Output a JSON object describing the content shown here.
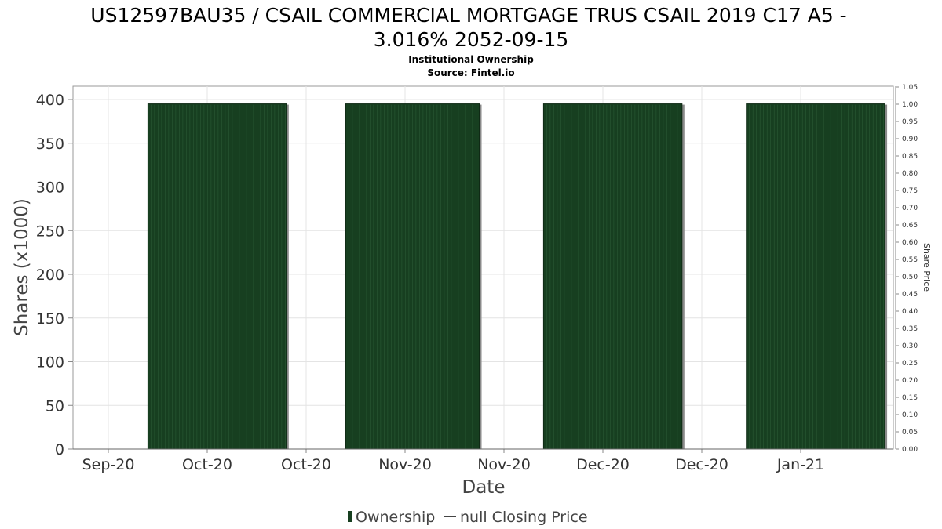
{
  "title_line1": "US12597BAU35 / CSAIL COMMERCIAL MORTGAGE TRUS CSAIL 2019 C17 A5 -",
  "title_line2": "3.016% 2052-09-15",
  "subtitle_line1": "Institutional Ownership",
  "subtitle_line2": "Source: Fintel.io",
  "colors": {
    "bar_fill": "#173f20",
    "bar_stripe": "#2b5a35",
    "bar_shadow": "#8a8a8a",
    "grid": "#e4e4e4",
    "axis": "#888888"
  },
  "legend": {
    "ownership": "Ownership",
    "price": "null Closing Price"
  },
  "chart_data": {
    "type": "bar",
    "title": "US12597BAU35 / CSAIL COMMERCIAL MORTGAGE TRUS CSAIL 2019 C17 A5 - 3.016% 2052-09-15",
    "xlabel": "Date",
    "ylabel": "Shares (x1000)",
    "y2label": "Share Price",
    "x_tick_labels": [
      "Sep-20",
      "Oct-20",
      "Oct-20",
      "Nov-20",
      "Nov-20",
      "Dec-20",
      "Dec-20",
      "Jan-21"
    ],
    "y_ticks": [
      0,
      50,
      100,
      150,
      200,
      250,
      300,
      350,
      400
    ],
    "y2_ticks": [
      "0.00",
      "0.05",
      "0.10",
      "0.15",
      "0.20",
      "0.25",
      "0.30",
      "0.35",
      "0.40",
      "0.45",
      "0.50",
      "0.55",
      "0.60",
      "0.65",
      "0.70",
      "0.75",
      "0.80",
      "0.85",
      "0.90",
      "0.95",
      "1.00",
      "1.05"
    ],
    "ylim": [
      0,
      400
    ],
    "y2lim": [
      0,
      1.05
    ],
    "grid": true,
    "legend_position": "bottom",
    "series": [
      {
        "name": "Ownership",
        "bars": [
          {
            "start": 0.4,
            "end": 1.8,
            "value": 395
          },
          {
            "start": 2.4,
            "end": 3.75,
            "value": 395
          },
          {
            "start": 4.4,
            "end": 5.8,
            "value": 395
          },
          {
            "start": 6.45,
            "end": 7.85,
            "value": 395
          }
        ]
      }
    ]
  }
}
